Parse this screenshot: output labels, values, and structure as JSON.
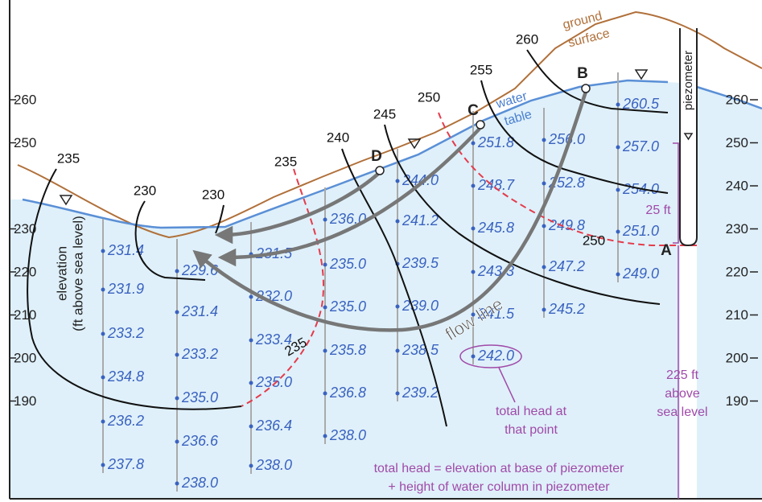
{
  "axis": {
    "left_ticks": [
      "260",
      "250",
      "230",
      "220",
      "210",
      "200",
      "190"
    ],
    "right_ticks": [
      "260",
      "250",
      "240",
      "230",
      "220",
      "210",
      "200",
      "190"
    ],
    "title": [
      "elevation",
      "(ft above sea level)"
    ]
  },
  "contours": [
    "235",
    "230",
    "230",
    "235",
    "240",
    "245",
    "250",
    "255",
    "260",
    "250",
    "235"
  ],
  "points": {
    "A": "A",
    "B": "B",
    "C": "C",
    "D": "D"
  },
  "labels": {
    "ground_surface": [
      "ground",
      "surface"
    ],
    "water_table": [
      "water",
      "table"
    ],
    "piezometer": "piezometer",
    "column_height": "25 ft",
    "base": [
      "225 ft",
      "above",
      "sea level"
    ],
    "flow_line": "flow line",
    "total_head_note": [
      "total head at",
      "that point"
    ],
    "formula": [
      "total head = elevation at base of piezometer",
      "+ height of water column in piezometer"
    ]
  },
  "head_columns": [
    [
      "231.4",
      "231.9",
      "233.2",
      "234.8",
      "236.2",
      "237.8"
    ],
    [
      "229.6",
      "231.4",
      "233.2",
      "235.0",
      "236.6",
      "238.0"
    ],
    [
      "231.5",
      "232.0",
      "233.4",
      "235.0",
      "236.4",
      "238.0"
    ],
    [
      "236.0",
      "235.0",
      "235.0",
      "235.8",
      "236.8",
      "238.0"
    ],
    [
      "244.0",
      "241.2",
      "239.5",
      "239.0",
      "238.5",
      "239.2"
    ],
    [
      "251.8",
      "248.7",
      "245.8",
      "243.3",
      "241.5",
      "242.0"
    ],
    [
      "256.0",
      "252.8",
      "249.8",
      "247.2",
      "245.2"
    ],
    [
      "260.5",
      "257.0",
      "254.0",
      "251.0",
      "249.0"
    ]
  ]
}
